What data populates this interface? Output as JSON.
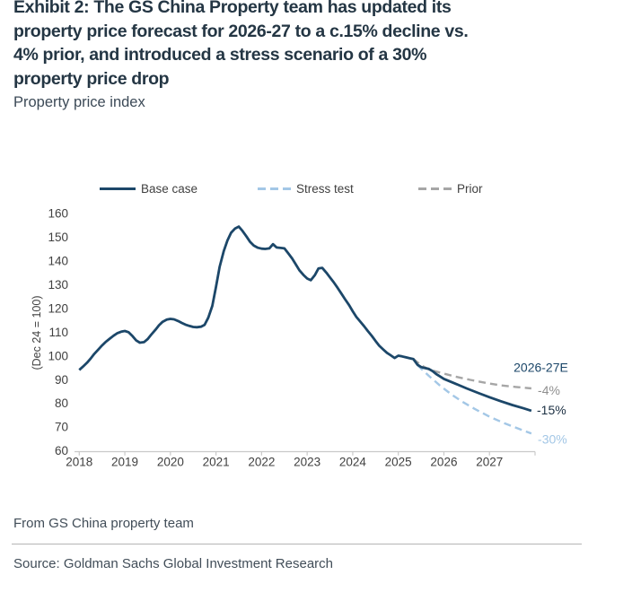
{
  "header": {
    "title_lines": [
      "Exhibit 2: The GS China Property team has updated its",
      "property price forecast for 2026-27 to a c.15% decline vs.",
      "4% prior, and introduced a stress scenario of a 30%",
      "property price drop"
    ],
    "subtitle": "Property price index"
  },
  "colors": {
    "base_case": "#1c4769",
    "base_dark": "#1b2f42",
    "stress_test": "#a3c7e6",
    "prior": "#a6a6a6",
    "prior_text": "#8f8f8f",
    "axis_text": "#404040",
    "axis_line": "#c9c9c9"
  },
  "chart_data": {
    "type": "line",
    "title": "Property price index",
    "ylabel": "(Dec 24 = 100)",
    "ylim": [
      60,
      160
    ],
    "yticks": [
      160,
      150,
      140,
      130,
      120,
      110,
      100,
      90,
      80,
      70,
      60
    ],
    "xticks": [
      2018,
      2019,
      2020,
      2021,
      2022,
      2023,
      2024,
      2025,
      2026,
      2027
    ],
    "xlim": [
      2017.9,
      2028.0
    ],
    "grid": false,
    "legend_position": "top",
    "legend": {
      "items": [
        {
          "label": "Base case",
          "style": "solid",
          "color_key": "base_case"
        },
        {
          "label": "Stress test",
          "style": "dashed",
          "color_key": "stress_test"
        },
        {
          "label": "Prior",
          "style": "dashed",
          "color_key": "prior"
        }
      ]
    },
    "series": [
      {
        "name": "Base case",
        "style": "solid",
        "color_key": "base_case",
        "x": [
          2018.0,
          2018.08,
          2018.17,
          2018.25,
          2018.33,
          2018.42,
          2018.5,
          2018.58,
          2018.67,
          2018.75,
          2018.83,
          2018.92,
          2019.0,
          2019.08,
          2019.17,
          2019.25,
          2019.33,
          2019.42,
          2019.5,
          2019.58,
          2019.67,
          2019.75,
          2019.83,
          2019.92,
          2020.0,
          2020.08,
          2020.17,
          2020.25,
          2020.33,
          2020.42,
          2020.5,
          2020.58,
          2020.67,
          2020.75,
          2020.83,
          2020.92,
          2021.0,
          2021.08,
          2021.17,
          2021.25,
          2021.33,
          2021.42,
          2021.5,
          2021.58,
          2021.67,
          2021.75,
          2021.83,
          2021.92,
          2022.0,
          2022.08,
          2022.17,
          2022.25,
          2022.33,
          2022.42,
          2022.5,
          2022.58,
          2022.67,
          2022.75,
          2022.83,
          2022.92,
          2023.0,
          2023.08,
          2023.17,
          2023.25,
          2023.33,
          2023.42,
          2023.5,
          2023.58,
          2023.67,
          2023.75,
          2023.83,
          2023.92,
          2024.0,
          2024.08,
          2024.17,
          2024.25,
          2024.33,
          2024.42,
          2024.5,
          2024.58,
          2024.67,
          2024.75,
          2024.83,
          2024.92,
          2025.0,
          2025.08,
          2025.17,
          2025.25,
          2025.33,
          2025.42,
          2025.5,
          2025.58,
          2025.67,
          2025.75,
          2025.83,
          2025.92,
          2026.0,
          2026.25,
          2026.5,
          2026.75,
          2027.0,
          2027.25,
          2027.5,
          2027.75,
          2027.92
        ],
        "values": [
          94,
          95.4,
          97,
          98.8,
          100.8,
          102.6,
          104.3,
          105.8,
          107.2,
          108.4,
          109.4,
          110.1,
          110.4,
          109.9,
          108.2,
          106.4,
          105.5,
          105.7,
          107,
          108.9,
          110.9,
          112.8,
          114.3,
          115.2,
          115.5,
          115.3,
          114.6,
          113.8,
          113.1,
          112.5,
          112.1,
          112,
          112.2,
          113,
          116,
          121,
          129,
          137.5,
          144,
          148.5,
          151.8,
          153.6,
          154.4,
          152.6,
          150.2,
          147.9,
          146.4,
          145.5,
          145.1,
          145,
          145.2,
          147,
          145.6,
          145.4,
          145.2,
          143.3,
          141,
          138.5,
          136,
          134,
          132.5,
          131.8,
          134,
          136.8,
          137,
          135,
          133,
          131,
          128.5,
          126.2,
          123.8,
          121.3,
          118.7,
          116.3,
          114.2,
          112.4,
          110.4,
          108.3,
          106.2,
          104.2,
          102.6,
          101.2,
          100.2,
          99,
          100,
          99.7,
          99.3,
          98.9,
          98.6,
          96.2,
          95.2,
          94.8,
          94.4,
          93.5,
          92.3,
          91.2,
          90.2,
          88.2,
          86.2,
          84.3,
          82.5,
          80.8,
          79.2,
          77.8,
          76.8
        ]
      },
      {
        "name": "Stress test",
        "style": "dashed",
        "color_key": "stress_test",
        "x": [
          2025.42,
          2025.67,
          2025.92,
          2026.17,
          2026.42,
          2026.67,
          2027.0,
          2027.33,
          2027.67,
          2027.92
        ],
        "values": [
          96.0,
          91.5,
          87.3,
          83.6,
          80.4,
          77.6,
          74.3,
          71.5,
          69.0,
          67.2
        ]
      },
      {
        "name": "Prior",
        "style": "dashed",
        "color_key": "prior",
        "x": [
          2025.33,
          2025.5,
          2025.67,
          2025.92,
          2026.25,
          2026.58,
          2026.92,
          2027.25,
          2027.58,
          2027.92
        ],
        "values": [
          98.6,
          96.0,
          94.2,
          92.8,
          91.2,
          89.8,
          88.5,
          87.5,
          86.8,
          86.2
        ]
      }
    ],
    "annotations": [
      {
        "text": "2026-27E",
        "x": 2027.53,
        "y": 93.2,
        "color_key": "base_case"
      },
      {
        "text": "-4%",
        "x": 2028.06,
        "y": 83.6,
        "color_key": "prior_text"
      },
      {
        "text": "-15%",
        "x": 2028.04,
        "y": 75.2,
        "color_key": "base_dark"
      },
      {
        "text": "-30%",
        "x": 2028.06,
        "y": 63.0,
        "color_key": "stress_test"
      }
    ]
  },
  "footer": {
    "note": "From GS China property team",
    "source": "Source: Goldman Sachs Global Investment Research"
  }
}
